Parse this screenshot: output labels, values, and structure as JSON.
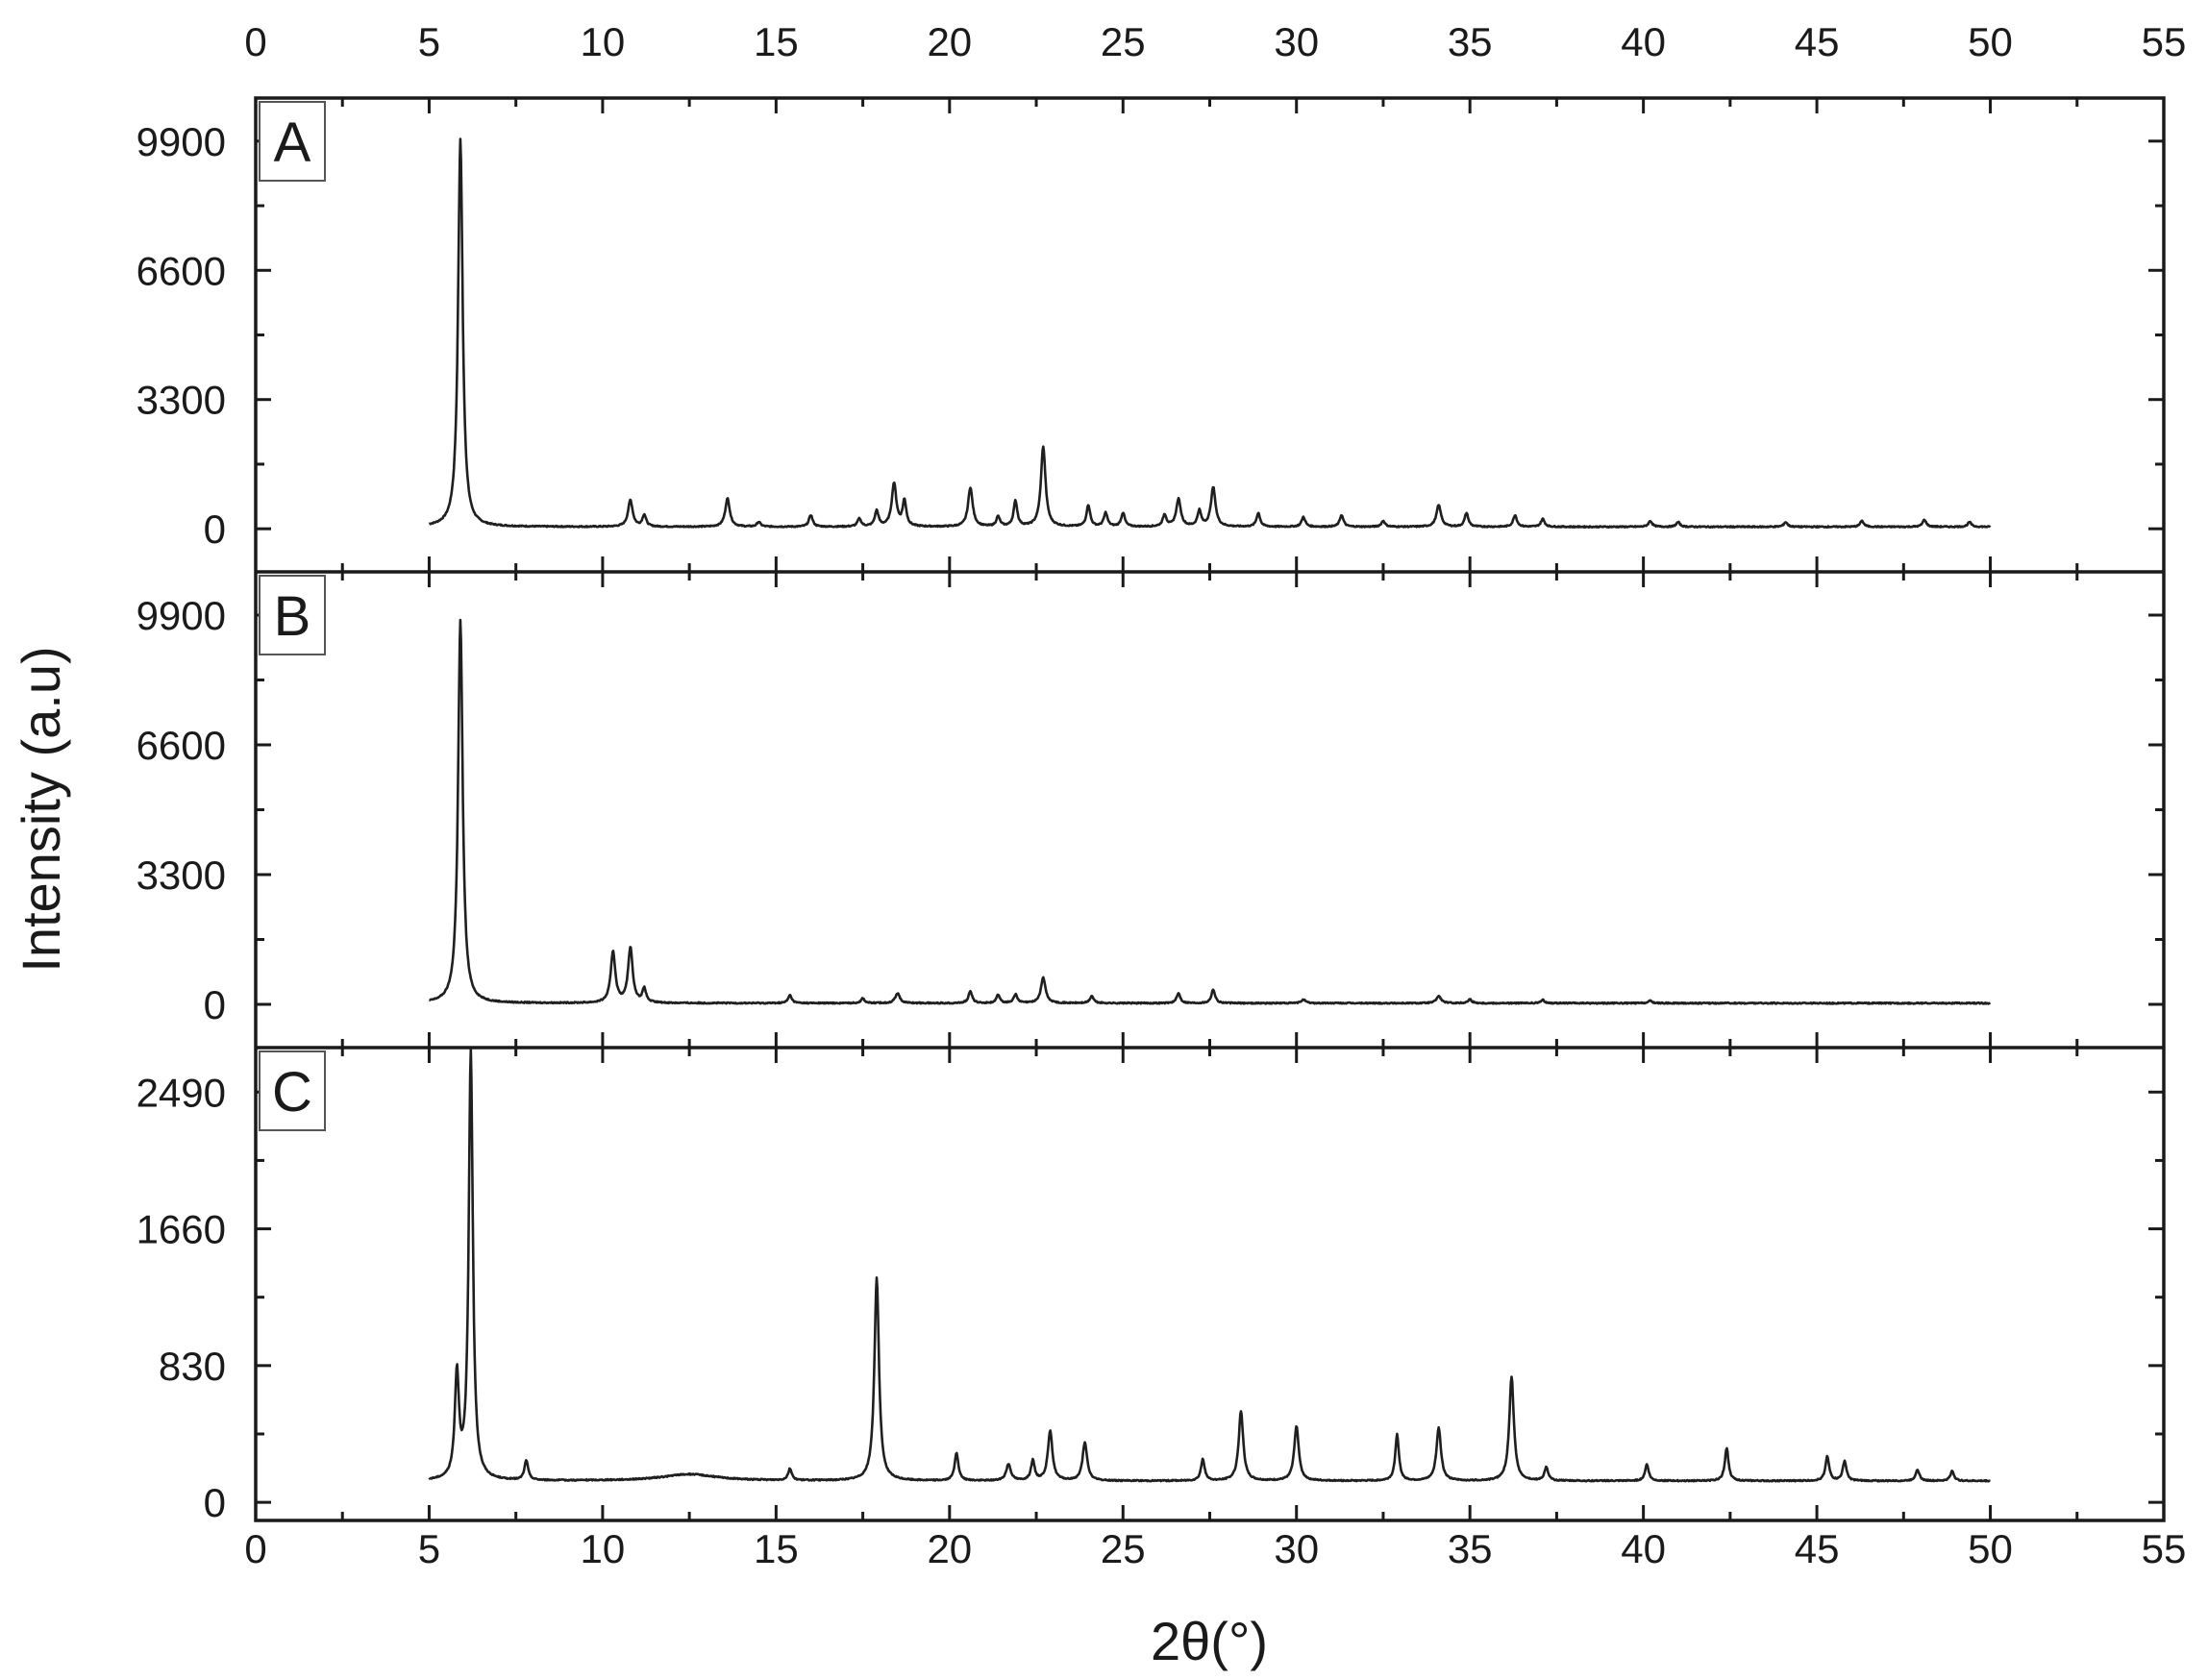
{
  "chart_data": {
    "type": "line",
    "xlabel": "2θ(°)",
    "ylabel": "Intensity (a.u)",
    "xlim": [
      0,
      55
    ],
    "x_ticks": [
      "0",
      "5",
      "10",
      "15",
      "20",
      "25",
      "30",
      "35",
      "40",
      "45",
      "50",
      "55"
    ],
    "x_range_data": [
      5,
      50
    ],
    "grid": false,
    "panels": [
      {
        "label": "A",
        "ylim": [
          -1100,
          11000
        ],
        "y_ticks": [
          "0",
          "3300",
          "6600",
          "9900"
        ],
        "baseline": 50,
        "peaks": [
          [
            5.9,
            9900,
            0.1
          ],
          [
            10.8,
            680,
            0.1
          ],
          [
            11.2,
            300,
            0.08
          ],
          [
            13.6,
            720,
            0.1
          ],
          [
            14.5,
            120,
            0.08
          ],
          [
            16.0,
            300,
            0.08
          ],
          [
            17.4,
            200,
            0.08
          ],
          [
            17.9,
            400,
            0.08
          ],
          [
            18.4,
            1100,
            0.1
          ],
          [
            18.7,
            650,
            0.08
          ],
          [
            20.6,
            1000,
            0.1
          ],
          [
            21.4,
            250,
            0.08
          ],
          [
            21.9,
            650,
            0.08
          ],
          [
            22.7,
            2050,
            0.1
          ],
          [
            24.0,
            550,
            0.08
          ],
          [
            24.5,
            350,
            0.08
          ],
          [
            25.0,
            350,
            0.08
          ],
          [
            26.2,
            300,
            0.08
          ],
          [
            26.6,
            700,
            0.1
          ],
          [
            27.2,
            400,
            0.08
          ],
          [
            27.6,
            1000,
            0.1
          ],
          [
            28.9,
            350,
            0.08
          ],
          [
            30.2,
            250,
            0.08
          ],
          [
            31.3,
            300,
            0.08
          ],
          [
            32.5,
            150,
            0.08
          ],
          [
            34.1,
            550,
            0.1
          ],
          [
            34.9,
            350,
            0.08
          ],
          [
            36.3,
            300,
            0.08
          ],
          [
            37.1,
            200,
            0.08
          ],
          [
            40.2,
            150,
            0.08
          ],
          [
            41.0,
            120,
            0.08
          ],
          [
            44.1,
            120,
            0.08
          ],
          [
            46.3,
            150,
            0.08
          ],
          [
            48.1,
            180,
            0.08
          ],
          [
            49.4,
            120,
            0.08
          ]
        ]
      },
      {
        "label": "B",
        "ylim": [
          -1100,
          11000
        ],
        "y_ticks": [
          "0",
          "3300",
          "6600",
          "9900"
        ],
        "baseline": 30,
        "peaks": [
          [
            5.9,
            9750,
            0.1
          ],
          [
            10.3,
            1300,
            0.1
          ],
          [
            10.8,
            1400,
            0.1
          ],
          [
            11.2,
            350,
            0.08
          ],
          [
            15.4,
            200,
            0.08
          ],
          [
            17.5,
            120,
            0.08
          ],
          [
            18.5,
            250,
            0.1
          ],
          [
            20.6,
            300,
            0.08
          ],
          [
            21.4,
            200,
            0.08
          ],
          [
            21.9,
            220,
            0.08
          ],
          [
            22.7,
            650,
            0.1
          ],
          [
            24.1,
            180,
            0.08
          ],
          [
            26.6,
            250,
            0.08
          ],
          [
            27.6,
            350,
            0.08
          ],
          [
            30.2,
            100,
            0.08
          ],
          [
            34.1,
            180,
            0.1
          ],
          [
            35.0,
            100,
            0.08
          ],
          [
            37.1,
            80,
            0.08
          ],
          [
            40.2,
            60,
            0.08
          ]
        ]
      },
      {
        "label": "C",
        "ylim": [
          -110,
          2760
        ],
        "y_ticks": [
          "0",
          "830",
          "1660",
          "2490"
        ],
        "baseline": 130,
        "peaks": [
          [
            5.8,
            630,
            0.09
          ],
          [
            6.2,
            2600,
            0.09
          ],
          [
            7.8,
            120,
            0.08
          ],
          [
            12.5,
            40,
            1.2
          ],
          [
            15.4,
            70,
            0.08
          ],
          [
            17.9,
            1230,
            0.1
          ],
          [
            20.2,
            170,
            0.08
          ],
          [
            21.7,
            100,
            0.1
          ],
          [
            22.4,
            120,
            0.08
          ],
          [
            22.9,
            300,
            0.1
          ],
          [
            23.9,
            230,
            0.1
          ],
          [
            27.3,
            130,
            0.08
          ],
          [
            28.4,
            420,
            0.1
          ],
          [
            30.0,
            330,
            0.1
          ],
          [
            32.9,
            280,
            0.08
          ],
          [
            34.1,
            320,
            0.1
          ],
          [
            36.2,
            630,
            0.1
          ],
          [
            37.2,
            80,
            0.08
          ],
          [
            40.1,
            100,
            0.08
          ],
          [
            42.4,
            200,
            0.08
          ],
          [
            45.3,
            150,
            0.08
          ],
          [
            45.8,
            120,
            0.08
          ],
          [
            47.9,
            70,
            0.08
          ],
          [
            48.9,
            60,
            0.08
          ]
        ]
      }
    ]
  }
}
